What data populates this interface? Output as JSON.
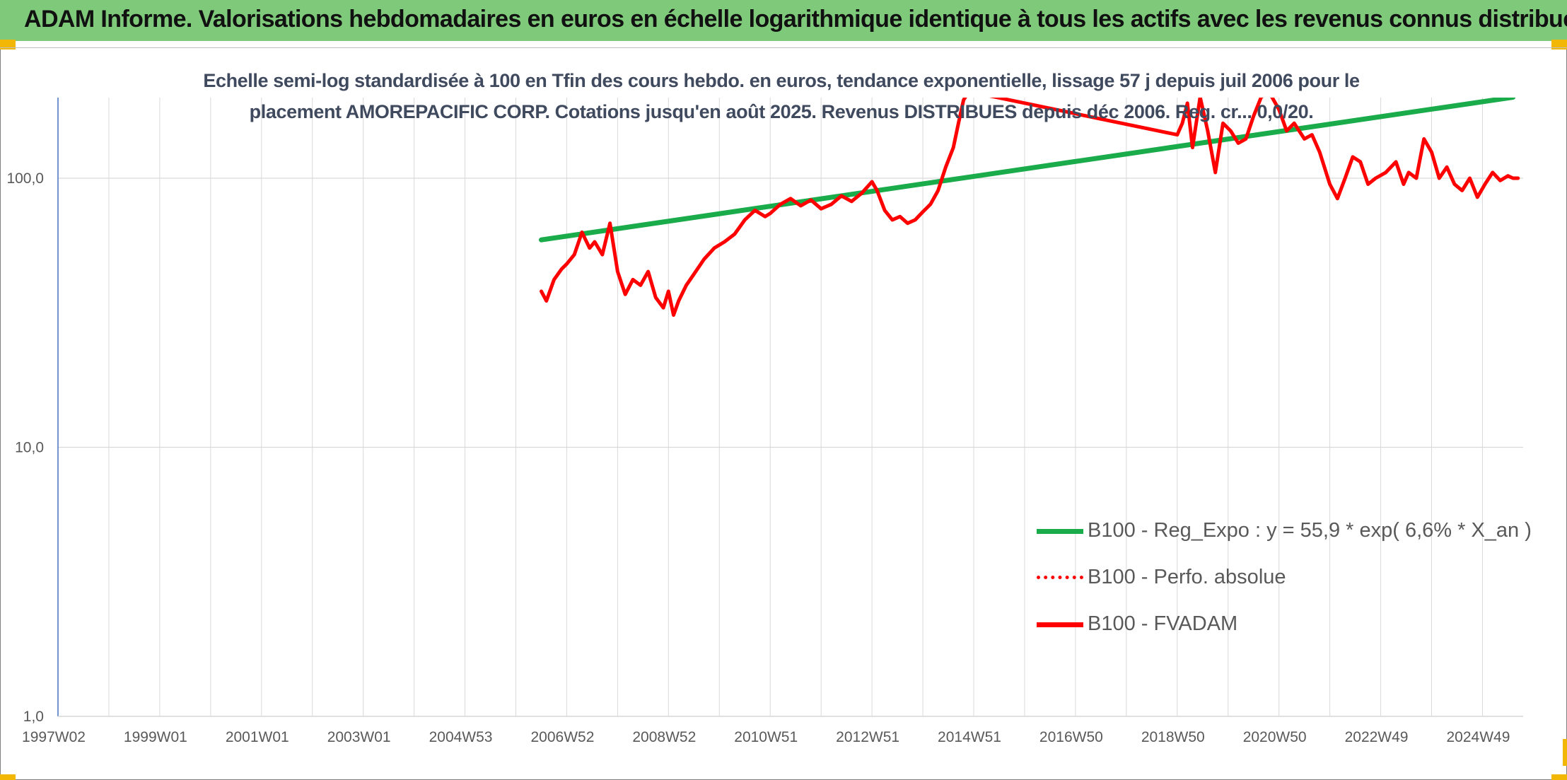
{
  "header": {
    "title": "ADAM Informe. Valorisations hebdomadaires en euros en échelle logarithmique identique à tous les actifs avec les revenus connus distribués"
  },
  "colors": {
    "title_bg": "#7fc97a",
    "trend": "#1aab4b",
    "series": "#ff0000",
    "grid": "#d9d9d9",
    "accent": "#f2b705"
  },
  "chart_data": {
    "type": "line",
    "title": "Echelle semi-log standardisée à 100 en Tfin des cours hebdo. en euros, tendance exponentielle, lissage 57 j depuis juil 2006 pour le placement AMOREPACIFIC CORP. Cotations jusqu'en août 2025. Revenus DISTRIBUES depuis déc 2006. Reg. cr... 0,0/20.",
    "yscale": "log",
    "ylim": [
      1,
      200
    ],
    "yticks": [
      {
        "value": 1,
        "label": "1,0"
      },
      {
        "value": 10,
        "label": "10,0"
      },
      {
        "value": 100,
        "label": "100,0"
      }
    ],
    "xlim": [
      1997.0,
      2025.8
    ],
    "xticks": [
      {
        "x": 1997.0,
        "label": "1997W02"
      },
      {
        "x": 1999.0,
        "label": "1999W01"
      },
      {
        "x": 2001.0,
        "label": "2001W01"
      },
      {
        "x": 2003.0,
        "label": "2003W01"
      },
      {
        "x": 2005.0,
        "label": "2004W53"
      },
      {
        "x": 2007.0,
        "label": "2006W52"
      },
      {
        "x": 2009.0,
        "label": "2008W52"
      },
      {
        "x": 2011.0,
        "label": "2010W51"
      },
      {
        "x": 2013.0,
        "label": "2012W51"
      },
      {
        "x": 2015.0,
        "label": "2014W51"
      },
      {
        "x": 2017.0,
        "label": "2016W50"
      },
      {
        "x": 2019.0,
        "label": "2018W50"
      },
      {
        "x": 2021.0,
        "label": "2020W50"
      },
      {
        "x": 2023.0,
        "label": "2022W49"
      },
      {
        "x": 2025.0,
        "label": "2024W49"
      }
    ],
    "grid": true,
    "legend_position": "bottom-right",
    "series": [
      {
        "name": "B100 - Reg_Expo : y = 55,9 * exp( 6,6% *  X_an )",
        "style": "solid-thick",
        "color": "#1aab4b",
        "x": [
          2006.5,
          2025.6
        ],
        "y": [
          59,
          200
        ]
      },
      {
        "name": "B100 - Perfo. absolue",
        "style": "dotted",
        "color": "#ff0000",
        "x": [],
        "y": []
      },
      {
        "name": "B100 - FVADAM",
        "style": "solid-thick",
        "color": "#ff0000",
        "x": [
          2006.5,
          2006.6,
          2006.75,
          2006.9,
          2007.0,
          2007.15,
          2007.3,
          2007.45,
          2007.55,
          2007.7,
          2007.85,
          2008.0,
          2008.15,
          2008.3,
          2008.45,
          2008.6,
          2008.75,
          2008.9,
          2009.0,
          2009.1,
          2009.2,
          2009.35,
          2009.5,
          2009.7,
          2009.9,
          2010.1,
          2010.3,
          2010.5,
          2010.7,
          2010.9,
          2011.0,
          2011.2,
          2011.4,
          2011.6,
          2011.8,
          2012.0,
          2012.2,
          2012.4,
          2012.6,
          2012.8,
          2013.0,
          2013.1,
          2013.25,
          2013.4,
          2013.55,
          2013.7,
          2013.85,
          2014.0,
          2014.15,
          2014.3,
          2014.45,
          2014.6,
          2014.7,
          2014.8,
          2014.9,
          2019.0,
          2019.1,
          2019.2,
          2019.3,
          2019.45,
          2019.6,
          2019.75,
          2019.9,
          2020.05,
          2020.2,
          2020.35,
          2020.5,
          2020.65,
          2020.8,
          2021.0,
          2021.15,
          2021.3,
          2021.5,
          2021.65,
          2021.8,
          2022.0,
          2022.15,
          2022.3,
          2022.45,
          2022.6,
          2022.75,
          2022.9,
          2023.1,
          2023.3,
          2023.45,
          2023.55,
          2023.7,
          2023.85,
          2024.0,
          2024.15,
          2024.3,
          2024.45,
          2024.6,
          2024.75,
          2024.9,
          2025.05,
          2025.2,
          2025.35,
          2025.5,
          2025.6,
          2025.7
        ],
        "y": [
          38,
          35,
          42,
          46,
          48,
          52,
          63,
          55,
          58,
          52,
          68,
          45,
          37,
          42,
          40,
          45,
          36,
          33,
          38,
          31,
          35,
          40,
          44,
          50,
          55,
          58,
          62,
          70,
          76,
          72,
          74,
          80,
          84,
          79,
          83,
          77,
          80,
          86,
          82,
          88,
          97,
          90,
          76,
          70,
          72,
          68,
          70,
          75,
          80,
          90,
          110,
          130,
          160,
          195,
          210,
          145,
          160,
          190,
          130,
          200,
          150,
          105,
          160,
          150,
          135,
          140,
          170,
          200,
          210,
          180,
          150,
          160,
          140,
          145,
          125,
          95,
          84,
          100,
          120,
          115,
          95,
          100,
          105,
          115,
          95,
          105,
          100,
          140,
          125,
          100,
          110,
          95,
          90,
          100,
          85,
          95,
          105,
          98,
          102,
          100,
          100
        ]
      }
    ]
  }
}
